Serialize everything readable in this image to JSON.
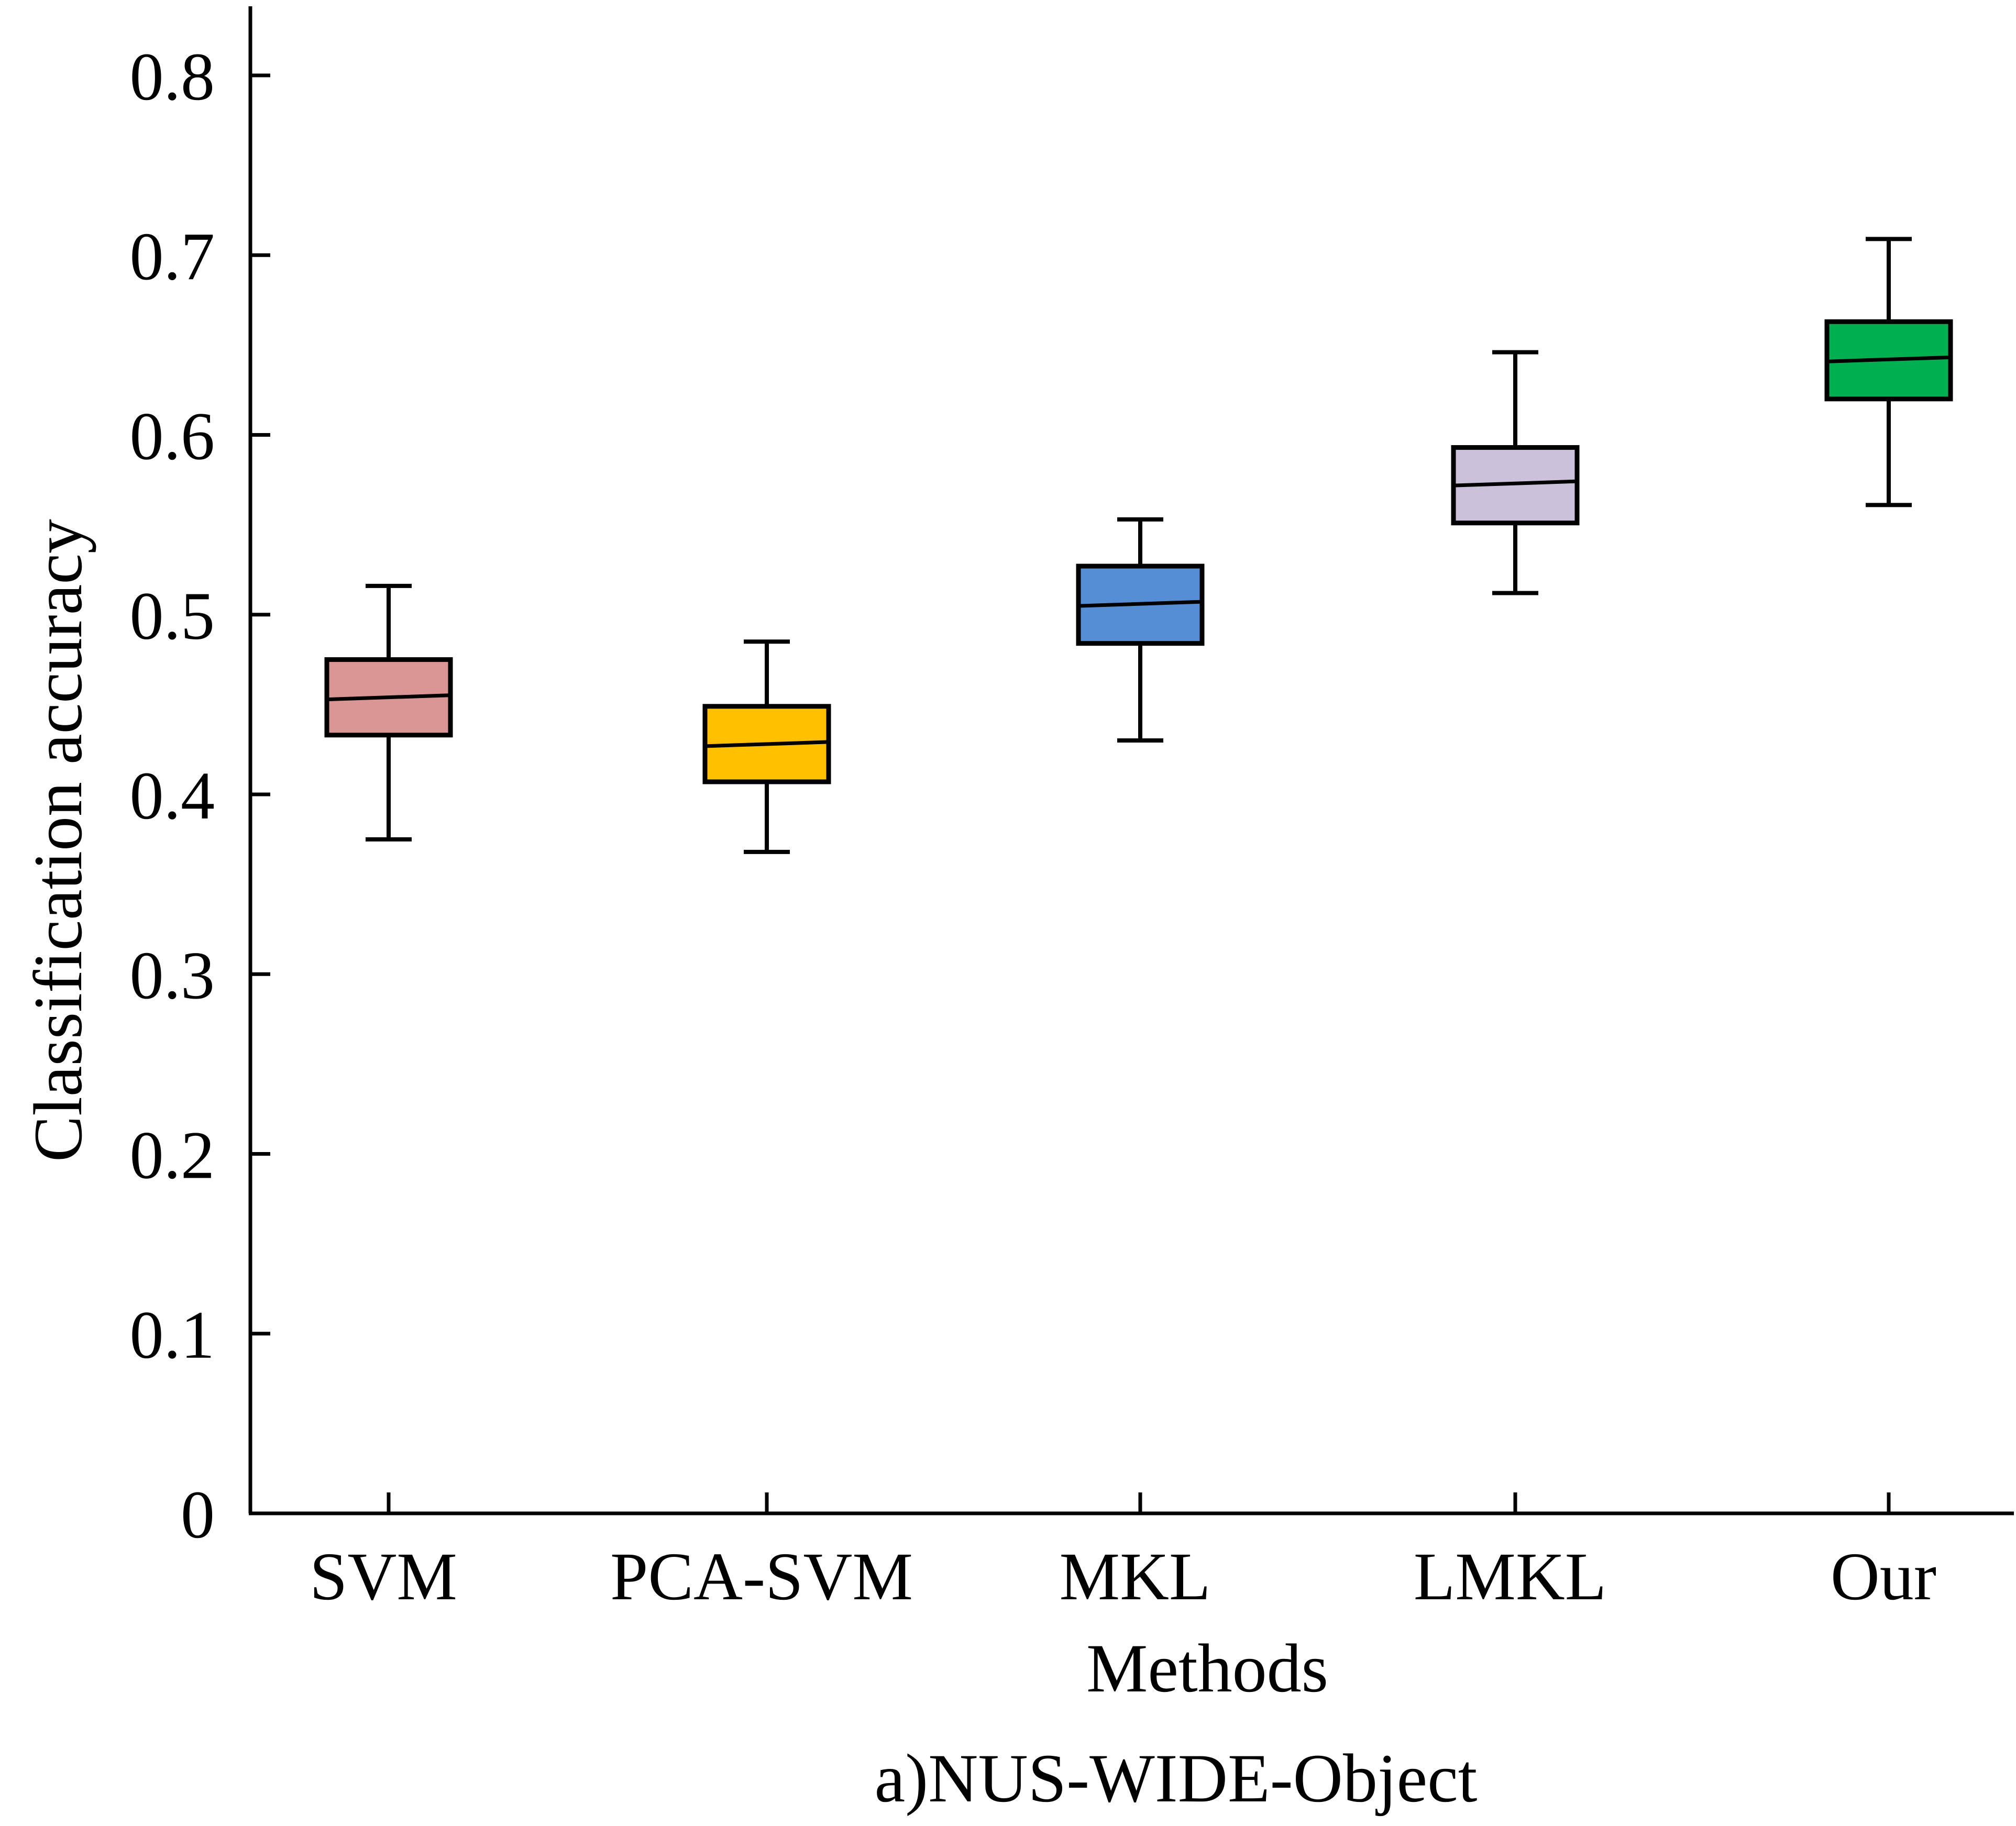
{
  "chart_data": {
    "type": "box",
    "title": "",
    "xlabel": "Methods",
    "ylabel": "Classification accuracy",
    "caption": "a)NUS-WIDE-Object",
    "ylim": [
      0,
      0.8
    ],
    "yticks": [
      "0",
      "0.1",
      "0.2",
      "0.3",
      "0.4",
      "0.5",
      "0.6",
      "0.7",
      "0.8"
    ],
    "grid": false,
    "categories": [
      "SVM",
      "PCA-SVM",
      "MKL",
      "LMKL",
      "Our"
    ],
    "boxes": [
      {
        "name": "SVM",
        "whisker_low": 0.375,
        "q1": 0.433,
        "median": 0.454,
        "q3": 0.475,
        "whisker_high": 0.516,
        "color": "#D99694"
      },
      {
        "name": "PCA-SVM",
        "whisker_low": 0.368,
        "q1": 0.407,
        "median": 0.428,
        "q3": 0.449,
        "whisker_high": 0.485,
        "color": "#FFC000"
      },
      {
        "name": "MKL",
        "whisker_low": 0.43,
        "q1": 0.484,
        "median": 0.506,
        "q3": 0.527,
        "whisker_high": 0.553,
        "color": "#558ED5"
      },
      {
        "name": "LMKL",
        "whisker_low": 0.512,
        "q1": 0.551,
        "median": 0.573,
        "q3": 0.593,
        "whisker_high": 0.646,
        "color": "#CCC1DA"
      },
      {
        "name": "Our",
        "whisker_low": 0.561,
        "q1": 0.62,
        "median": 0.642,
        "q3": 0.663,
        "whisker_high": 0.709,
        "color": "#00B050"
      }
    ]
  }
}
